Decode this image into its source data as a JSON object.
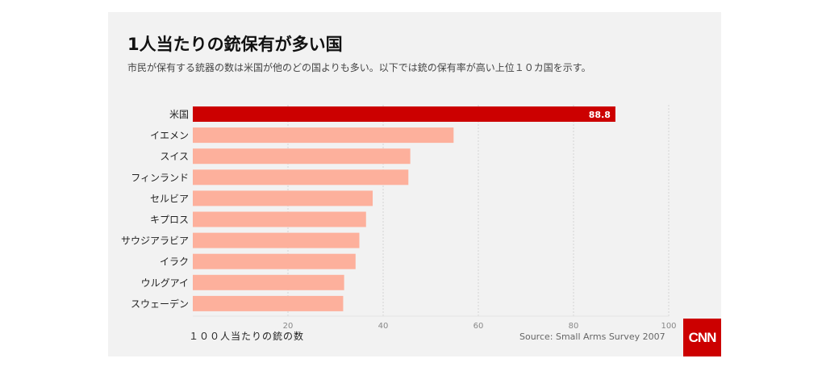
{
  "chart_data": {
    "type": "bar",
    "orientation": "horizontal",
    "title": "1人当たりの銃保有が多い国",
    "subtitle": "市民が保有する銃器の数は米国が他のどの国よりも多い。以下では銃の保有率が高い上位１０カ国を示す。",
    "categories": [
      "米国",
      "イエメン",
      "スイス",
      "フィンランド",
      "セルビア",
      "キプロス",
      "サウジアラビア",
      "イラク",
      "ウルグアイ",
      "スウェーデン"
    ],
    "values": [
      88.8,
      54.8,
      45.7,
      45.3,
      37.8,
      36.4,
      35.0,
      34.2,
      31.8,
      31.6
    ],
    "data_labels": [
      "88.8"
    ],
    "xlabel": "１００人当たりの銃の数",
    "xlim": [
      0,
      100
    ],
    "xticks": [
      20,
      40,
      60,
      80,
      100
    ],
    "grid": true,
    "highlight_color": "#cc0000",
    "bar_color": "#fdb09c",
    "source": "Source: Small Arms Survey 2007"
  },
  "logo": "CNN"
}
